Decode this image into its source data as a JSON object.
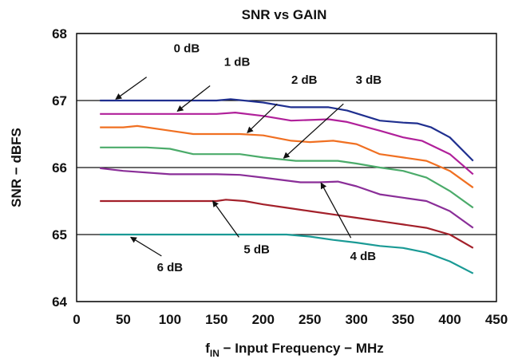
{
  "chart_data": {
    "type": "line",
    "title": "SNR vs GAIN",
    "xlabel_main": "f",
    "xlabel_sub": "IN",
    "xlabel_rest": " − Input Frequency − MHz",
    "ylabel": "SNR − dBFS",
    "xlim": [
      0,
      450
    ],
    "ylim": [
      64,
      68
    ],
    "xticks": [
      "0",
      "50",
      "100",
      "150",
      "200",
      "250",
      "300",
      "350",
      "400",
      "450"
    ],
    "yticks": [
      "64",
      "65",
      "66",
      "67",
      "68"
    ],
    "grid": "horizontal",
    "series": [
      {
        "name": "0 dB",
        "color": "#1f2f8f",
        "x": [
          25,
          75,
          125,
          150,
          165,
          200,
          230,
          270,
          290,
          325,
          350,
          365,
          380,
          400,
          425
        ],
        "y": [
          67.0,
          67.0,
          67.0,
          67.0,
          67.02,
          66.97,
          66.9,
          66.9,
          66.85,
          66.7,
          66.67,
          66.66,
          66.6,
          66.45,
          66.1
        ]
      },
      {
        "name": "1 dB",
        "color": "#b0209a",
        "x": [
          25,
          100,
          150,
          170,
          200,
          230,
          270,
          290,
          325,
          350,
          370,
          400,
          425
        ],
        "y": [
          66.8,
          66.8,
          66.8,
          66.82,
          66.77,
          66.7,
          66.72,
          66.68,
          66.55,
          66.45,
          66.4,
          66.2,
          65.9
        ]
      },
      {
        "name": "2 dB",
        "color": "#f07022",
        "x": [
          25,
          50,
          65,
          100,
          125,
          175,
          200,
          230,
          250,
          275,
          300,
          325,
          350,
          375,
          400,
          425
        ],
        "y": [
          66.6,
          66.6,
          66.62,
          66.55,
          66.5,
          66.5,
          66.48,
          66.4,
          66.38,
          66.4,
          66.35,
          66.2,
          66.15,
          66.1,
          65.95,
          65.7
        ]
      },
      {
        "name": "3 dB",
        "color": "#4bab6a",
        "x": [
          25,
          75,
          100,
          125,
          175,
          200,
          235,
          250,
          280,
          300,
          325,
          350,
          375,
          400,
          425
        ],
        "y": [
          66.3,
          66.3,
          66.28,
          66.2,
          66.2,
          66.15,
          66.1,
          66.1,
          66.1,
          66.06,
          66.0,
          65.95,
          65.85,
          65.65,
          65.4
        ]
      },
      {
        "name": "4 dB",
        "color": "#8a2e98",
        "x": [
          25,
          50,
          100,
          150,
          175,
          200,
          240,
          260,
          280,
          300,
          325,
          350,
          375,
          400,
          425
        ],
        "y": [
          65.99,
          65.95,
          65.9,
          65.9,
          65.89,
          65.85,
          65.78,
          65.78,
          65.79,
          65.72,
          65.6,
          65.55,
          65.5,
          65.35,
          65.1
        ]
      },
      {
        "name": "5 dB",
        "color": "#a3202a",
        "x": [
          25,
          100,
          150,
          160,
          180,
          200,
          225,
          250,
          275,
          300,
          325,
          350,
          375,
          400,
          425
        ],
        "y": [
          65.5,
          65.5,
          65.5,
          65.52,
          65.5,
          65.45,
          65.4,
          65.35,
          65.3,
          65.25,
          65.2,
          65.15,
          65.1,
          65.0,
          64.8
        ]
      },
      {
        "name": "6 dB",
        "color": "#1a9a95",
        "x": [
          25,
          100,
          150,
          200,
          225,
          250,
          275,
          300,
          325,
          350,
          375,
          400,
          425
        ],
        "y": [
          65.0,
          65.0,
          65.0,
          65.0,
          65.0,
          64.97,
          64.92,
          64.88,
          64.83,
          64.8,
          64.73,
          64.6,
          64.42
        ]
      }
    ],
    "annotations": [
      {
        "text": "0 dB",
        "x": 118,
        "y": 67.72,
        "ax": 75,
        "ay": 67.35,
        "hx": 42,
        "hy": 67.02
      },
      {
        "text": "1 dB",
        "x": 172,
        "y": 67.52,
        "ax": 143,
        "ay": 67.22,
        "hx": 108,
        "hy": 66.84
      },
      {
        "text": "2 dB",
        "x": 244,
        "y": 67.25,
        "ax": 215,
        "ay": 66.95,
        "hx": 183,
        "hy": 66.52
      },
      {
        "text": "3 dB",
        "x": 313,
        "y": 67.25,
        "ax": 286,
        "ay": 66.95,
        "hx": 222,
        "hy": 66.14
      },
      {
        "text": "4 dB",
        "x": 307,
        "y": 64.62,
        "ax": 294,
        "ay": 64.95,
        "hx": 262,
        "hy": 65.77
      },
      {
        "text": "5 dB",
        "x": 193,
        "y": 64.72,
        "ax": 174,
        "ay": 64.96,
        "hx": 146,
        "hy": 65.5
      },
      {
        "text": "6 dB",
        "x": 100,
        "y": 64.45,
        "ax": 91,
        "ay": 64.68,
        "hx": 58,
        "hy": 64.96
      }
    ]
  }
}
